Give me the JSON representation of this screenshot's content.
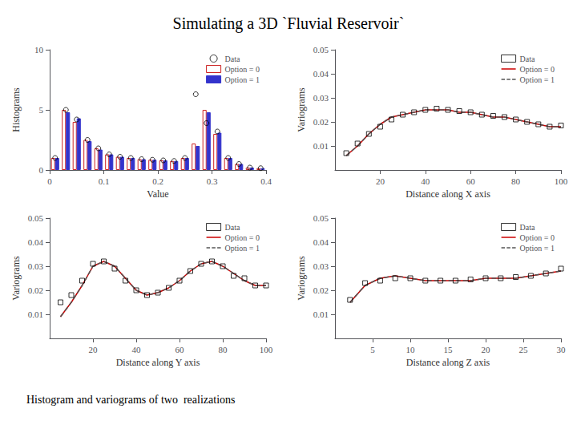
{
  "title": "Simulating a 3D `Fluvial Reservoir`",
  "subtitle": "Histogram and variograms of two  realizations",
  "chart_data": [
    {
      "type": "bar",
      "xlabel": "Value",
      "ylabel": "Histograms",
      "x": [
        0.01,
        0.03,
        0.05,
        0.07,
        0.09,
        0.11,
        0.13,
        0.15,
        0.17,
        0.19,
        0.21,
        0.23,
        0.25,
        0.27,
        0.29,
        0.31,
        0.33,
        0.35,
        0.37,
        0.39
      ],
      "series": [
        {
          "name": "Data",
          "type": "scatter",
          "marker": "circle",
          "color": "#000000",
          "values": [
            1.0,
            5.0,
            4.2,
            2.5,
            1.8,
            1.3,
            1.1,
            1.0,
            0.9,
            0.85,
            0.8,
            0.75,
            1.0,
            6.3,
            3.9,
            3.2,
            1.0,
            0.5,
            0.2,
            0.15
          ]
        },
        {
          "name": "Option = 0",
          "type": "bar",
          "color": "#cc2222",
          "values": [
            1.0,
            5.0,
            4.0,
            2.5,
            1.8,
            1.3,
            1.1,
            1.0,
            0.9,
            0.85,
            0.8,
            0.75,
            1.0,
            2.2,
            5.0,
            3.0,
            1.0,
            0.5,
            0.2,
            0.15
          ]
        },
        {
          "name": "Option = 1",
          "type": "bar",
          "color": "#3333cc",
          "values": [
            1.0,
            4.8,
            4.3,
            2.4,
            1.7,
            1.3,
            1.1,
            1.0,
            0.9,
            0.85,
            0.8,
            0.75,
            1.0,
            2.0,
            4.8,
            3.1,
            1.0,
            0.5,
            0.2,
            0.15
          ]
        }
      ],
      "xlim": [
        0,
        0.4
      ],
      "xticks": [
        0,
        0.1,
        0.2,
        0.3,
        0.4
      ],
      "ylim": [
        0,
        10
      ],
      "yticks": [
        0,
        5,
        10
      ],
      "grid": false,
      "legend": "upper right"
    },
    {
      "type": "line",
      "xlabel": "Distance along X axis",
      "ylabel": "Variograms",
      "x": [
        5,
        10,
        15,
        20,
        25,
        30,
        35,
        40,
        45,
        50,
        55,
        60,
        65,
        70,
        75,
        80,
        85,
        90,
        95,
        100
      ],
      "series": [
        {
          "name": "Data",
          "type": "scatter",
          "marker": "square",
          "color": "#000000",
          "values": [
            0.007,
            0.011,
            0.015,
            0.018,
            0.021,
            0.023,
            0.024,
            0.025,
            0.0255,
            0.025,
            0.0245,
            0.024,
            0.023,
            0.0225,
            0.022,
            0.021,
            0.02,
            0.019,
            0.018,
            0.0185
          ]
        },
        {
          "name": "Option = 0",
          "type": "line",
          "line_style": "solid",
          "color": "#cc0000",
          "values": [
            0.006,
            0.01,
            0.015,
            0.019,
            0.022,
            0.023,
            0.024,
            0.025,
            0.025,
            0.025,
            0.024,
            0.024,
            0.023,
            0.022,
            0.022,
            0.021,
            0.02,
            0.019,
            0.018,
            0.018
          ]
        },
        {
          "name": "Option = 1",
          "type": "line",
          "line_style": "dashed",
          "color": "#555555",
          "values": [
            0.006,
            0.01,
            0.015,
            0.019,
            0.022,
            0.023,
            0.024,
            0.025,
            0.025,
            0.025,
            0.024,
            0.024,
            0.023,
            0.022,
            0.022,
            0.021,
            0.02,
            0.019,
            0.018,
            0.018
          ]
        }
      ],
      "xlim": [
        0,
        100
      ],
      "xticks": [
        20,
        40,
        60,
        80,
        100
      ],
      "ylim": [
        0,
        0.05
      ],
      "yticks": [
        0.01,
        0.02,
        0.03,
        0.04,
        0.05
      ],
      "grid": false,
      "legend": "upper right"
    },
    {
      "type": "line",
      "xlabel": "Distance along Y axis",
      "ylabel": "Variograms",
      "x": [
        5,
        10,
        15,
        20,
        25,
        30,
        35,
        40,
        45,
        50,
        55,
        60,
        65,
        70,
        75,
        80,
        85,
        90,
        95,
        100
      ],
      "series": [
        {
          "name": "Data",
          "type": "scatter",
          "marker": "square",
          "color": "#000000",
          "values": [
            0.015,
            0.018,
            0.024,
            0.031,
            0.032,
            0.029,
            0.024,
            0.02,
            0.018,
            0.019,
            0.021,
            0.024,
            0.028,
            0.031,
            0.032,
            0.03,
            0.026,
            0.025,
            0.022,
            0.022
          ]
        },
        {
          "name": "Option = 0",
          "type": "line",
          "line_style": "solid",
          "color": "#cc0000",
          "values": [
            0.009,
            0.015,
            0.022,
            0.03,
            0.032,
            0.03,
            0.025,
            0.02,
            0.018,
            0.019,
            0.021,
            0.024,
            0.028,
            0.031,
            0.032,
            0.03,
            0.027,
            0.024,
            0.022,
            0.022
          ]
        },
        {
          "name": "Option = 1",
          "type": "line",
          "line_style": "dashed",
          "color": "#555555",
          "values": [
            0.009,
            0.015,
            0.022,
            0.03,
            0.032,
            0.03,
            0.025,
            0.02,
            0.018,
            0.019,
            0.021,
            0.024,
            0.028,
            0.031,
            0.032,
            0.03,
            0.027,
            0.024,
            0.022,
            0.022
          ]
        }
      ],
      "xlim": [
        0,
        100
      ],
      "xticks": [
        20,
        40,
        60,
        80,
        100
      ],
      "ylim": [
        0,
        0.05
      ],
      "yticks": [
        0.01,
        0.02,
        0.03,
        0.04,
        0.05
      ],
      "grid": false,
      "legend": "upper right"
    },
    {
      "type": "line",
      "xlabel": "Distance along Z axis",
      "ylabel": "Variograms",
      "x": [
        2,
        4,
        6,
        8,
        10,
        12,
        14,
        16,
        18,
        20,
        22,
        24,
        26,
        28,
        30
      ],
      "series": [
        {
          "name": "Data",
          "type": "scatter",
          "marker": "square",
          "color": "#000000",
          "values": [
            0.016,
            0.023,
            0.024,
            0.025,
            0.025,
            0.024,
            0.024,
            0.024,
            0.0245,
            0.025,
            0.025,
            0.0255,
            0.026,
            0.027,
            0.029
          ]
        },
        {
          "name": "Option = 0",
          "type": "line",
          "line_style": "solid",
          "color": "#cc0000",
          "values": [
            0.015,
            0.022,
            0.025,
            0.026,
            0.025,
            0.024,
            0.024,
            0.024,
            0.024,
            0.025,
            0.025,
            0.025,
            0.026,
            0.027,
            0.028
          ]
        },
        {
          "name": "Option = 1",
          "type": "line",
          "line_style": "dashed",
          "color": "#555555",
          "values": [
            0.015,
            0.022,
            0.025,
            0.026,
            0.025,
            0.024,
            0.024,
            0.024,
            0.024,
            0.025,
            0.025,
            0.025,
            0.026,
            0.027,
            0.028
          ]
        }
      ],
      "xlim": [
        0,
        30
      ],
      "xticks": [
        5,
        10,
        15,
        20,
        25,
        30
      ],
      "ylim": [
        0,
        0.05
      ],
      "yticks": [
        0.01,
        0.02,
        0.03,
        0.04,
        0.05
      ],
      "grid": false,
      "legend": "upper right"
    }
  ]
}
